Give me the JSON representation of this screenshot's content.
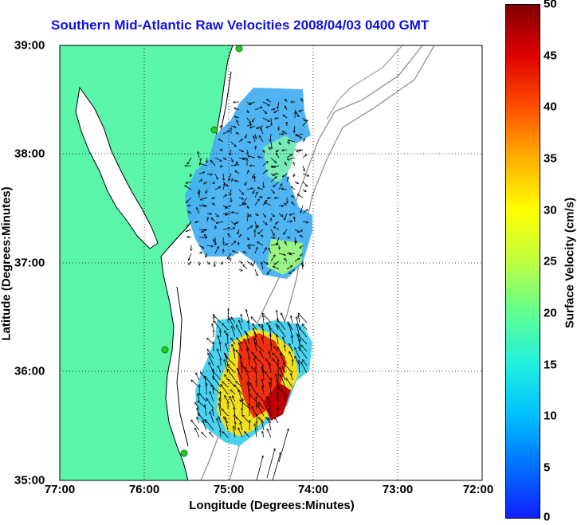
{
  "title": "Southern Mid-Atlantic Raw Velocities 2008/04/03 0400 GMT",
  "axes": {
    "xlabel": "Longitude (Degrees:Minutes)",
    "ylabel": "Latitude (Degrees:Minutes)",
    "x_ticks": [
      "77:00",
      "76:00",
      "75:00",
      "74:00",
      "73:00",
      "72:00"
    ],
    "y_ticks": [
      "39:00",
      "38:00",
      "37:00",
      "36:00",
      "35:00"
    ],
    "x_range_deg_west": [
      77,
      72
    ],
    "y_range_deg_north": [
      35,
      39
    ],
    "grid": "dotted"
  },
  "colorbar": {
    "label": "Surface Velocity (cm/s)",
    "ticks": [
      "50",
      "45",
      "40",
      "35",
      "30",
      "25",
      "20",
      "15",
      "10",
      "5",
      "0"
    ],
    "range": [
      0,
      50
    ],
    "colormap": "jet"
  },
  "colors": {
    "land": "#5af5a8",
    "coast": "#000000",
    "bathymetry": "#888888",
    "title": "#1010e0",
    "station": "#22cc22"
  }
}
